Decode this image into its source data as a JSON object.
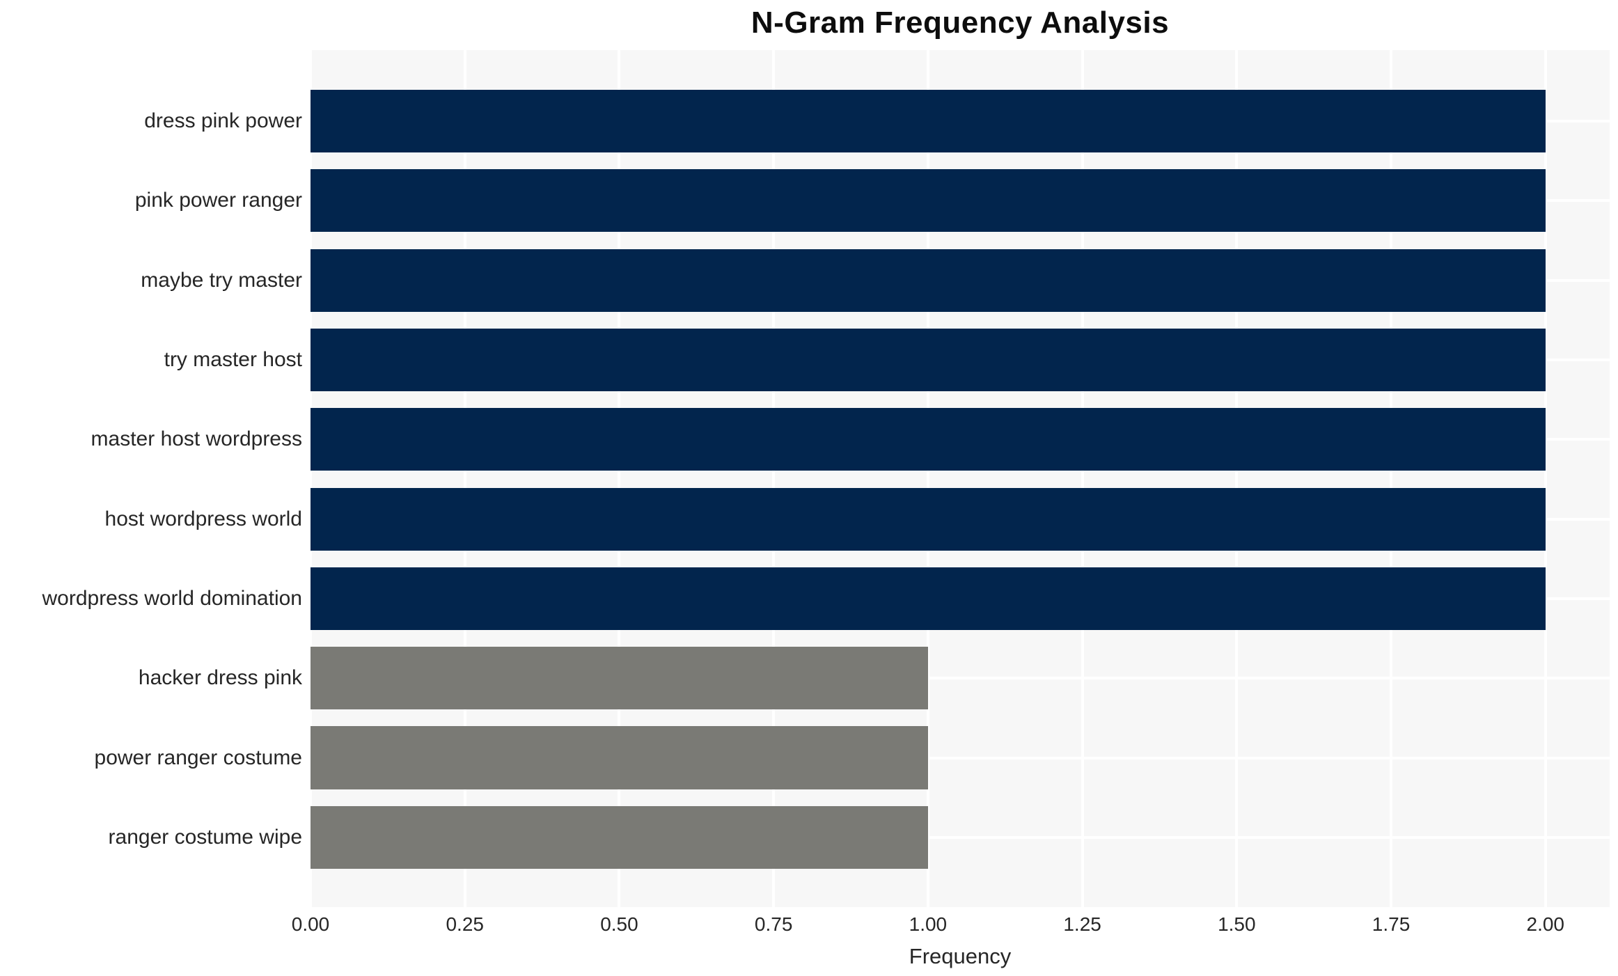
{
  "chart_data": {
    "type": "bar",
    "orientation": "horizontal",
    "title": "N-Gram Frequency Analysis",
    "xlabel": "Frequency",
    "ylabel": "",
    "categories": [
      "dress pink power",
      "pink power ranger",
      "maybe try master",
      "try master host",
      "master host wordpress",
      "host wordpress world",
      "wordpress world domination",
      "hacker dress pink",
      "power ranger costume",
      "ranger costume wipe"
    ],
    "values": [
      2,
      2,
      2,
      2,
      2,
      2,
      2,
      1,
      1,
      1
    ],
    "bar_colors": [
      "#02254d",
      "#02254d",
      "#02254d",
      "#02254d",
      "#02254d",
      "#02254d",
      "#02254d",
      "#7a7a75",
      "#7a7a75",
      "#7a7a75"
    ],
    "xlim": [
      0,
      2.104
    ],
    "xticks": [
      0,
      0.25,
      0.5,
      0.75,
      1.0,
      1.25,
      1.5,
      1.75,
      2.0
    ],
    "xtick_labels": [
      "0.00",
      "0.25",
      "0.50",
      "0.75",
      "1.00",
      "1.25",
      "1.50",
      "1.75",
      "2.00"
    ],
    "grid": true,
    "legend": "none",
    "colors": {
      "plot_background": "#f7f7f7",
      "grid_line": "#ffffff",
      "bar_primary": "#02254d",
      "bar_secondary": "#7a7a75",
      "text": "#262626"
    }
  }
}
